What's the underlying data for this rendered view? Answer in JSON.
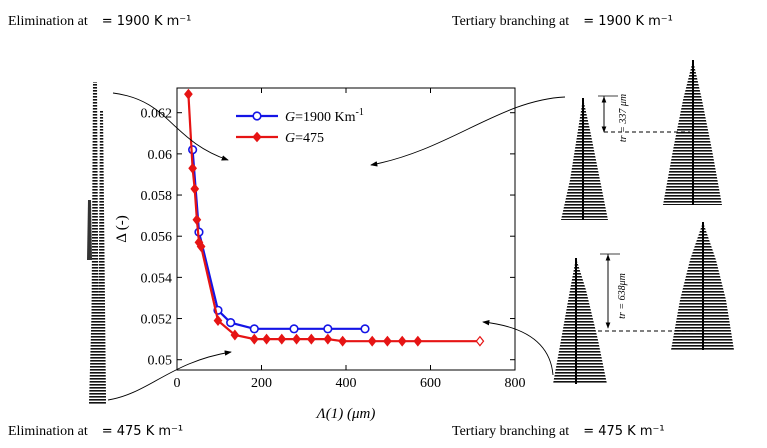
{
  "captions": {
    "top_left": "Elimination at",
    "top_left_eq": "= 1900 K m⁻¹",
    "top_right": "Tertiary branching at",
    "top_right_eq": "= 1900 K m⁻¹",
    "bottom_left": "Elimination at",
    "bottom_left_eq": "= 475 K m⁻¹",
    "bottom_right": "Tertiary branching at",
    "bottom_right_eq": "= 475 K m⁻¹"
  },
  "annotations": {
    "tr_top": "tr = 337 μm",
    "tr_bottom": "tr = 638μm"
  },
  "colors": {
    "series1": "#1414e6",
    "series2": "#e61414"
  },
  "chart_data": {
    "type": "line",
    "title": "",
    "xlabel": "Λ(1) (μm)",
    "ylabel": "Δ (-)",
    "xlim": [
      0,
      800
    ],
    "ylim": [
      0.0495,
      0.0632
    ],
    "xticks": [
      0,
      200,
      400,
      600,
      800
    ],
    "yticks": [
      0.05,
      0.052,
      0.054,
      0.056,
      0.058,
      0.06,
      0.062
    ],
    "xtick_labels": [
      "0",
      "200",
      "400",
      "600",
      "800"
    ],
    "ytick_labels": [
      "0.05",
      "0.052",
      "0.054",
      "0.056",
      "0.058",
      "0.06",
      "0.062"
    ],
    "grid": false,
    "legend_position": "top-center",
    "series": [
      {
        "name": "G=1900 Km-1",
        "legend_main": "G",
        "legend_rest": "=1900 Km",
        "legend_sup": "-1",
        "marker": "circle",
        "color": "#1414e6",
        "x": [
          37,
          52,
          97,
          127,
          183,
          277,
          357,
          445
        ],
        "y": [
          0.0602,
          0.0562,
          0.0524,
          0.0518,
          0.0515,
          0.0515,
          0.0515,
          0.0515
        ]
      },
      {
        "name": "G=475",
        "legend_main": "G",
        "legend_rest": "=475",
        "legend_sup": "",
        "marker": "diamond",
        "color": "#e61414",
        "x": [
          27,
          37,
          42,
          47,
          52,
          57,
          97,
          137,
          183,
          212,
          248,
          283,
          318,
          357,
          392,
          462,
          498,
          533,
          570,
          717
        ],
        "y": [
          0.0629,
          0.0593,
          0.0583,
          0.0568,
          0.0557,
          0.0555,
          0.0519,
          0.0512,
          0.051,
          0.051,
          0.051,
          0.051,
          0.051,
          0.051,
          0.0509,
          0.0509,
          0.0509,
          0.0509,
          0.0509,
          0.0509
        ]
      }
    ]
  }
}
